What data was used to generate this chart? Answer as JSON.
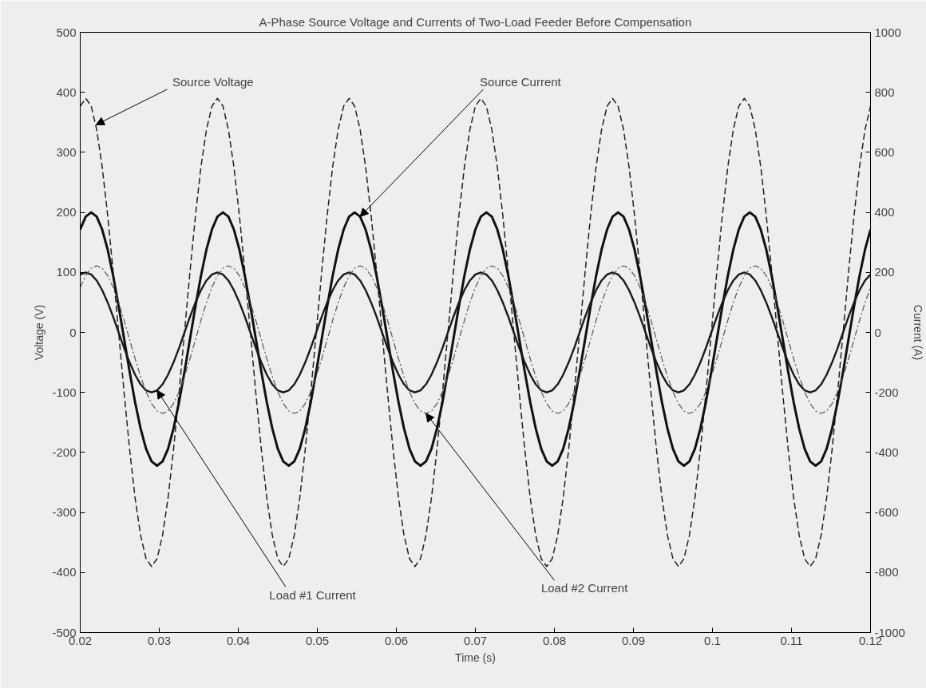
{
  "chart_data": {
    "type": "line",
    "title": "A-Phase Source Voltage and Currents of Two-Load Feeder Before Compensation",
    "xlabel": "Time (s)",
    "ylabel": "Voltage (V)",
    "y2label": "Current (A)",
    "xlim": [
      0.02,
      0.12
    ],
    "xticks": [
      0.02,
      0.03,
      0.04,
      0.05,
      0.06,
      0.07,
      0.08,
      0.09,
      0.1,
      0.11,
      0.12
    ],
    "ylim": [
      -500,
      500
    ],
    "yticks": [
      -500,
      -400,
      -300,
      -200,
      -100,
      0,
      100,
      200,
      300,
      400,
      500
    ],
    "y2lim": [
      -1000,
      1000
    ],
    "y2ticks": [
      -1000,
      -800,
      -600,
      -400,
      -200,
      0,
      200,
      400,
      600,
      800,
      1000
    ],
    "grid": false,
    "x": [
      0.02,
      0.020694,
      0.021389,
      0.022083,
      0.022778,
      0.023472,
      0.024167,
      0.024861,
      0.025556,
      0.02625,
      0.026944,
      0.027639,
      0.028333,
      0.029028,
      0.029722,
      0.030417,
      0.031111,
      0.031806,
      0.0325,
      0.033194,
      0.033889,
      0.034583,
      0.035278,
      0.035972,
      0.036667,
      0.037361,
      0.038056,
      0.03875,
      0.039444,
      0.040139,
      0.040833,
      0.041528,
      0.042222,
      0.042917,
      0.043611,
      0.044306,
      0.045,
      0.045694,
      0.046389,
      0.047083,
      0.047778,
      0.048472,
      0.049167,
      0.049861,
      0.050556,
      0.05125,
      0.051944,
      0.052639,
      0.053333,
      0.054028,
      0.054722,
      0.055417,
      0.056111,
      0.056806,
      0.0575,
      0.058194,
      0.058889,
      0.059583,
      0.060278,
      0.060972,
      0.061667,
      0.062361,
      0.063056,
      0.06375,
      0.064444,
      0.065139,
      0.065833,
      0.066528,
      0.067222,
      0.067917,
      0.068611,
      0.069306,
      0.07,
      0.070694,
      0.071389,
      0.072083,
      0.072778,
      0.073472,
      0.074167,
      0.074861,
      0.075556,
      0.07625,
      0.076944,
      0.077639,
      0.078333,
      0.079028,
      0.079722,
      0.080417,
      0.081111,
      0.081806,
      0.0825,
      0.083194,
      0.083889,
      0.084583,
      0.085278,
      0.085972,
      0.086667,
      0.087361,
      0.088056,
      0.08875,
      0.089444,
      0.090139,
      0.090833,
      0.091528,
      0.092222,
      0.092917,
      0.093611,
      0.094306,
      0.095,
      0.095694,
      0.096389,
      0.097083,
      0.097778,
      0.098472,
      0.099167,
      0.099861,
      0.100556,
      0.10125,
      0.101944,
      0.102639,
      0.103333,
      0.104028,
      0.104722,
      0.105417,
      0.106111,
      0.106806,
      0.1075,
      0.108194,
      0.108889,
      0.109583,
      0.110278,
      0.110972,
      0.111667,
      0.112361,
      0.113056,
      0.11375,
      0.114444,
      0.115139,
      0.115833,
      0.116528,
      0.117222,
      0.117917,
      0.118611,
      0.119306,
      0.12
    ],
    "series": [
      {
        "color": "#222222",
        "line_style": "dashed",
        "values": [
          377,
          390,
          377,
          338,
          276,
          195,
          101,
          0,
          -101,
          -195,
          -276,
          -338,
          -377,
          -390,
          -377,
          -338,
          -276,
          -195,
          -101,
          0,
          101,
          195,
          276,
          338,
          377,
          390,
          377,
          338,
          276,
          195,
          101,
          0,
          -101,
          -195,
          -276,
          -338,
          -377,
          -390,
          -377,
          -338,
          -276,
          -195,
          -101,
          0,
          101,
          195,
          276,
          338,
          377,
          390,
          377,
          338,
          276,
          195,
          101,
          0,
          -101,
          -195,
          -276,
          -338,
          -377,
          -390,
          -377,
          -338,
          -276,
          -195,
          -101,
          0,
          101,
          195,
          276,
          338,
          377,
          390,
          377,
          338,
          276,
          195,
          101,
          0,
          -101,
          -195,
          -276,
          -338,
          -377,
          -390,
          -377,
          -338,
          -276,
          -195,
          -101,
          0,
          101,
          195,
          276,
          338,
          377,
          390,
          377,
          338,
          276,
          195,
          101,
          0,
          -101,
          -195,
          -276,
          -338,
          -377,
          -390,
          -377,
          -338,
          -276,
          -195,
          -101,
          0,
          101,
          195,
          276,
          338,
          377,
          390,
          377,
          338,
          276,
          195,
          101,
          0,
          -101,
          -195,
          -276,
          -338,
          -377,
          -390,
          -377,
          -338,
          -276,
          -195,
          -101,
          0,
          101,
          195,
          276,
          338,
          377
        ]
      },
      {
        "color": "#111111",
        "line_style": "solid",
        "axis": "y2",
        "values": [
          343,
          386,
          400,
          386,
          343,
          276,
          189,
          87,
          -22,
          -131,
          -233,
          -320,
          -388,
          -430,
          -444,
          -430,
          -388,
          -320,
          -233,
          -131,
          -22,
          87,
          189,
          276,
          343,
          386,
          400,
          386,
          343,
          276,
          189,
          87,
          -22,
          -131,
          -233,
          -320,
          -388,
          -430,
          -444,
          -430,
          -388,
          -320,
          -233,
          -131,
          -22,
          87,
          189,
          276,
          343,
          386,
          400,
          386,
          343,
          276,
          189,
          87,
          -22,
          -131,
          -233,
          -320,
          -388,
          -430,
          -444,
          -430,
          -388,
          -320,
          -233,
          -131,
          -22,
          87,
          189,
          276,
          343,
          386,
          400,
          386,
          343,
          276,
          189,
          87,
          -22,
          -131,
          -233,
          -320,
          -388,
          -430,
          -444,
          -430,
          -388,
          -320,
          -233,
          -131,
          -22,
          87,
          189,
          276,
          343,
          386,
          400,
          386,
          343,
          276,
          189,
          87,
          -22,
          -131,
          -233,
          -320,
          -388,
          -430,
          -444,
          -430,
          -388,
          -320,
          -233,
          -131,
          -22,
          87,
          189,
          276,
          343,
          386,
          400,
          386,
          343,
          276,
          189,
          87,
          -22,
          -131,
          -233,
          -320,
          -388,
          -430,
          -444,
          -430,
          -388,
          -320,
          -233,
          -131,
          -22,
          87,
          189,
          276,
          343
        ]
      },
      {
        "color": "#1a1a1a",
        "line_style": "solid",
        "axis": "y2",
        "values": [
          193,
          200,
          193,
          173,
          141,
          100,
          52,
          0,
          -52,
          -100,
          -141,
          -173,
          -193,
          -200,
          -193,
          -173,
          -141,
          -100,
          -52,
          0,
          52,
          100,
          141,
          173,
          193,
          200,
          193,
          173,
          141,
          100,
          52,
          0,
          -52,
          -100,
          -141,
          -173,
          -193,
          -200,
          -193,
          -173,
          -141,
          -100,
          -52,
          0,
          52,
          100,
          141,
          173,
          193,
          200,
          193,
          173,
          141,
          100,
          52,
          0,
          -52,
          -100,
          -141,
          -173,
          -193,
          -200,
          -193,
          -173,
          -141,
          -100,
          -52,
          0,
          52,
          100,
          141,
          173,
          193,
          200,
          193,
          173,
          141,
          100,
          52,
          0,
          -52,
          -100,
          -141,
          -173,
          -193,
          -200,
          -193,
          -173,
          -141,
          -100,
          -52,
          0,
          52,
          100,
          141,
          173,
          193,
          200,
          193,
          173,
          141,
          100,
          52,
          0,
          -52,
          -100,
          -141,
          -173,
          -193,
          -200,
          -193,
          -173,
          -141,
          -100,
          -52,
          0,
          52,
          100,
          141,
          173,
          193,
          200,
          193,
          173,
          141,
          100,
          52,
          0,
          -52,
          -100,
          -141,
          -173,
          -193,
          -200,
          -193,
          -173,
          -141,
          -100,
          -52,
          0,
          52,
          100,
          141,
          173,
          193
        ]
      },
      {
        "color": "#555555",
        "line_style": "dashdot",
        "axis": "y2",
        "values": [
          150,
          189,
          214,
          222,
          214,
          189,
          150,
          99,
          40,
          -24,
          -88,
          -147,
          -198,
          -237,
          -262,
          -270,
          -262,
          -237,
          -198,
          -147,
          -88,
          -24,
          40,
          99,
          150,
          189,
          214,
          222,
          214,
          189,
          150,
          99,
          40,
          -24,
          -88,
          -147,
          -198,
          -237,
          -262,
          -270,
          -262,
          -237,
          -198,
          -147,
          -88,
          -24,
          40,
          99,
          150,
          189,
          214,
          222,
          214,
          189,
          150,
          99,
          40,
          -24,
          -88,
          -147,
          -198,
          -237,
          -262,
          -270,
          -262,
          -237,
          -198,
          -147,
          -88,
          -24,
          40,
          99,
          150,
          189,
          214,
          222,
          214,
          189,
          150,
          99,
          40,
          -24,
          -88,
          -147,
          -198,
          -237,
          -262,
          -270,
          -262,
          -237,
          -198,
          -147,
          -88,
          -24,
          40,
          99,
          150,
          189,
          214,
          222,
          214,
          189,
          150,
          99,
          40,
          -24,
          -88,
          -147,
          -198,
          -237,
          -262,
          -270,
          -262,
          -237,
          -198,
          -147,
          -88,
          -24,
          40,
          99,
          150,
          189,
          214,
          222,
          214,
          189,
          150,
          99,
          40,
          -24,
          -88,
          -147,
          -198,
          -237,
          -262,
          -270,
          -262,
          -237,
          -198,
          -147,
          -88,
          -24,
          40,
          99,
          150
        ]
      }
    ],
    "annotations": [
      {
        "text": "Source Voltage",
        "x": 0.022,
        "y": 346
      },
      {
        "text": "Source Current",
        "x": 0.055417,
        "y": 193
      },
      {
        "text": "Load #1 Current",
        "x": 0.029722,
        "y": -96.5
      },
      {
        "text": "Load #2 Current",
        "x": 0.06375,
        "y": -135
      }
    ]
  }
}
